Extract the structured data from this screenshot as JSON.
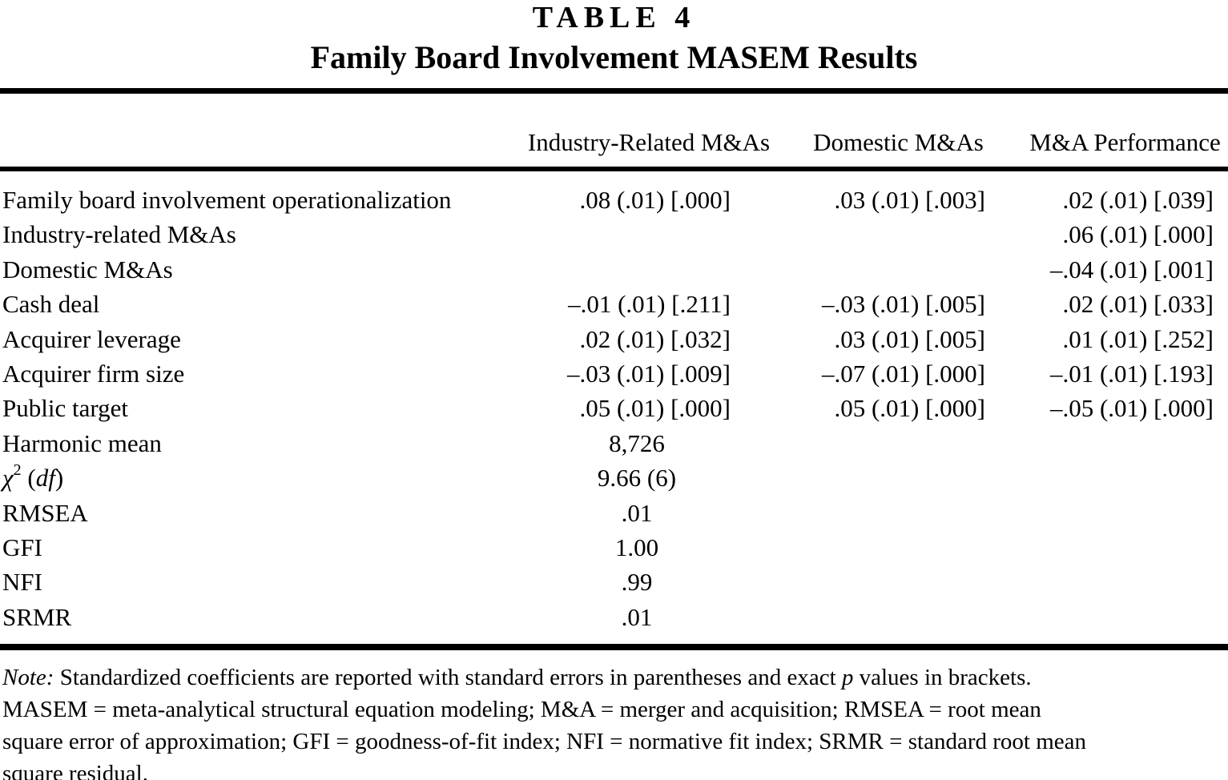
{
  "colors": {
    "text": "#000000",
    "background": "#ffffff"
  },
  "table": {
    "title": "TABLE 4",
    "subtitle": "Family Board Involvement MASEM Results",
    "columns": [
      "Industry-Related M&As",
      "Domestic M&As",
      "M&A Performance"
    ],
    "rows": [
      {
        "label": "Family board involvement operationalization",
        "values": [
          ".08 (.01) [.000]",
          ".03 (.01) [.003]",
          ".02 (.01) [.039]"
        ]
      },
      {
        "label": "Industry-related M&As",
        "values": [
          "",
          "",
          ".06 (.01) [.000]"
        ]
      },
      {
        "label": "Domestic M&As",
        "values": [
          "",
          "",
          "–.04 (.01) [.001]"
        ]
      },
      {
        "label": "Cash deal",
        "values": [
          "–.01 (.01) [.211]",
          "–.03 (.01) [.005]",
          ".02 (.01) [.033]"
        ]
      },
      {
        "label": "Acquirer leverage",
        "values": [
          ".02 (.01) [.032]",
          ".03 (.01) [.005]",
          ".01 (.01) [.252]"
        ]
      },
      {
        "label": "Acquirer firm size",
        "values": [
          "–.03 (.01) [.009]",
          "–.07 (.01) [.000]",
          "–.01 (.01) [.193]"
        ]
      },
      {
        "label": "Public target",
        "values": [
          ".05 (.01) [.000]",
          ".05 (.01) [.000]",
          "–.05 (.01) [.000]"
        ]
      }
    ],
    "fit_rows": [
      {
        "label": "Harmonic mean",
        "value": "8,726"
      },
      {
        "label_chi": "χ",
        "label_sup": "2",
        "label_open": " (",
        "label_df": "df",
        "label_close": ")",
        "value": "9.66 (6)"
      },
      {
        "label": "RMSEA",
        "value": ".01"
      },
      {
        "label": "GFI",
        "value": "1.00"
      },
      {
        "label": "NFI",
        "value": ".99"
      },
      {
        "label": "SRMR",
        "value": ".01"
      }
    ],
    "note": {
      "line1_label": "Note:",
      "line1_text1": " Standardized coefficients are reported with standard errors in parentheses and exact ",
      "line1_p": "p",
      "line1_text2": " values in brackets.",
      "line2": "MASEM = meta-analytical structural equation modeling; M&A = merger and acquisition; RMSEA = root mean",
      "line3": "square error of approximation; GFI = goodness-of-fit index; NFI = normative fit index; SRMR = standard root mean",
      "line4": "square residual."
    }
  }
}
